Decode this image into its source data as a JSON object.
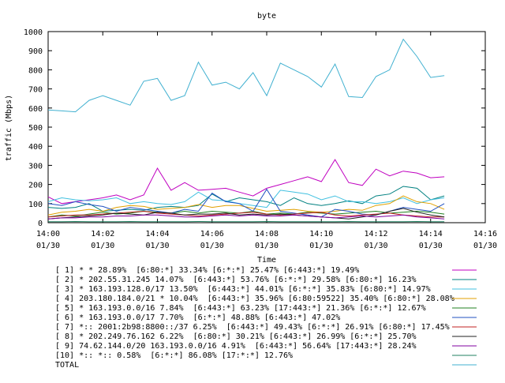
{
  "chart_data": {
    "type": "line",
    "title": "byte",
    "xlabel": "Time",
    "ylabel": "traffic (Mbps)",
    "ylim": [
      0,
      1000
    ],
    "xlim": [
      "14:00",
      "14:16"
    ],
    "grid": false,
    "legend_placement": "bottom",
    "y_ticks": [
      "0",
      "100",
      "200",
      "300",
      "400",
      "500",
      "600",
      "700",
      "800",
      "900",
      "1000"
    ],
    "x_ticks": [
      {
        "time": "14:00",
        "date": "01/30"
      },
      {
        "time": "14:02",
        "date": "01/30"
      },
      {
        "time": "14:04",
        "date": "01/30"
      },
      {
        "time": "14:06",
        "date": "01/30"
      },
      {
        "time": "14:08",
        "date": "01/30"
      },
      {
        "time": "14:10",
        "date": "01/30"
      },
      {
        "time": "14:12",
        "date": "01/30"
      },
      {
        "time": "14:14",
        "date": "01/30"
      },
      {
        "time": "14:16",
        "date": "01/30"
      }
    ],
    "x": [
      "14:00:00",
      "14:00:30",
      "14:01:00",
      "14:01:30",
      "14:02:00",
      "14:02:30",
      "14:03:00",
      "14:03:30",
      "14:04:00",
      "14:04:30",
      "14:05:00",
      "14:05:30",
      "14:06:00",
      "14:06:30",
      "14:07:00",
      "14:07:30",
      "14:08:00",
      "14:08:30",
      "14:09:00",
      "14:09:30",
      "14:10:00",
      "14:10:30",
      "14:11:00",
      "14:11:30",
      "14:12:00",
      "14:12:30",
      "14:13:00",
      "14:13:30",
      "14:14:00",
      "14:14:30"
    ],
    "series": [
      {
        "name": "[ 1] * * 28.89%  [6:80:*] 33.34% [6:*:*] 25.47% [6:443:*] 19.49%",
        "color": "#c000c0",
        "values": [
          135,
          100,
          110,
          120,
          130,
          145,
          120,
          145,
          285,
          170,
          210,
          170,
          175,
          180,
          160,
          140,
          180,
          200,
          220,
          240,
          215,
          330,
          210,
          195,
          280,
          245,
          270,
          260,
          235,
          240
        ]
      },
      {
        "name": "[ 2] * 202.55.31.245 14.07%  [6:443:*] 53.76% [6:*:*] 29.58% [6:80:*] 16.23%",
        "color": "#008080",
        "values": [
          80,
          75,
          80,
          100,
          60,
          65,
          70,
          65,
          80,
          85,
          80,
          90,
          150,
          110,
          130,
          120,
          110,
          90,
          130,
          100,
          90,
          100,
          115,
          100,
          140,
          150,
          190,
          180,
          120,
          140
        ]
      },
      {
        "name": "[ 3] * 163.193.128.0/17 13.50%  [6:443:*] 44.01% [6:*:*] 35.83% [6:80:*] 14.97%",
        "color": "#40c0e0",
        "values": [
          110,
          130,
          120,
          115,
          120,
          130,
          100,
          110,
          100,
          95,
          110,
          160,
          120,
          115,
          100,
          90,
          80,
          170,
          160,
          150,
          120,
          140,
          110,
          110,
          100,
          110,
          130,
          100,
          120,
          130
        ]
      },
      {
        "name": "[ 4] 203.180.184.0/21 * 10.04%  [6:443:*] 35.96% [6:80:59522] 35.40% [6:80:*] 28.08%",
        "color": "#e0a000",
        "values": [
          40,
          55,
          60,
          70,
          60,
          80,
          90,
          85,
          70,
          75,
          80,
          95,
          80,
          90,
          90,
          75,
          60,
          65,
          70,
          60,
          55,
          60,
          70,
          65,
          90,
          100,
          140,
          110,
          100,
          70
        ]
      },
      {
        "name": "[ 5] * 163.193.0.0/16 7.84%  [6:443:*] 63.23% [17:443:*] 21.36% [6:*:*] 12.67%",
        "color": "#208020",
        "values": [
          30,
          40,
          35,
          45,
          55,
          45,
          50,
          60,
          55,
          50,
          60,
          50,
          60,
          55,
          50,
          60,
          45,
          50,
          45,
          55,
          50,
          45,
          50,
          55,
          60,
          50,
          55,
          60,
          55,
          45
        ]
      },
      {
        "name": "[ 6] * 163.193.0.0/17 7.70%  [6:*:*] 48.88% [6:443:*] 47.02%",
        "color": "#2050c0",
        "values": [
          100,
          90,
          110,
          95,
          85,
          60,
          80,
          70,
          60,
          50,
          70,
          60,
          155,
          110,
          100,
          60,
          175,
          60,
          50,
          40,
          30,
          70,
          60,
          45,
          40,
          60,
          80,
          70,
          60,
          100
        ]
      },
      {
        "name": "[ 7] *:: 2001:2b98:8800::/37 6.25%  [6:443:*] 49.43% [6:*:*] 26.91% [6:80:*] 17.45%",
        "color": "#c02020",
        "values": [
          30,
          35,
          40,
          40,
          45,
          50,
          55,
          60,
          50,
          45,
          40,
          35,
          40,
          45,
          50,
          55,
          45,
          40,
          45,
          50,
          55,
          40,
          35,
          40,
          45,
          50,
          40,
          35,
          30,
          30
        ]
      },
      {
        "name": "[ 8] * 202.249.76.162 6.22%  [6:80:*] 30.21% [6:443:*] 26.99% [6:*:*] 25.70%",
        "color": "#202020",
        "values": [
          20,
          25,
          30,
          35,
          40,
          50,
          45,
          40,
          55,
          50,
          40,
          45,
          45,
          50,
          40,
          45,
          40,
          45,
          40,
          35,
          30,
          25,
          20,
          30,
          40,
          60,
          75,
          55,
          40,
          30
        ]
      },
      {
        "name": "[ 9] 74.62.144.0/20 163.193.0.0/16 4.91%  [6:443:*] 56.64% [17:443:*] 28.24%",
        "color": "#8000a0",
        "values": [
          20,
          25,
          25,
          30,
          30,
          35,
          35,
          40,
          40,
          35,
          30,
          30,
          35,
          40,
          35,
          40,
          35,
          35,
          40,
          35,
          30,
          25,
          30,
          35,
          30,
          35,
          40,
          30,
          25,
          20
        ]
      },
      {
        "name": "[10] *:: *:: 0.58%  [6:*:*] 86.08% [17:*:*] 12.76%",
        "color": "#208060",
        "values": [
          5,
          5,
          6,
          5,
          5,
          5,
          6,
          5,
          5,
          5,
          5,
          6,
          5,
          5,
          5,
          5,
          6,
          5,
          5,
          5,
          5,
          5,
          6,
          5,
          5,
          5,
          5,
          6,
          5,
          5
        ]
      },
      {
        "name": "TOTAL",
        "color": "#40b0d0",
        "values": [
          590,
          585,
          580,
          640,
          665,
          640,
          615,
          740,
          755,
          640,
          665,
          840,
          720,
          735,
          700,
          785,
          665,
          835,
          800,
          765,
          710,
          830,
          660,
          655,
          765,
          800,
          960,
          870,
          760,
          770
        ]
      }
    ]
  }
}
